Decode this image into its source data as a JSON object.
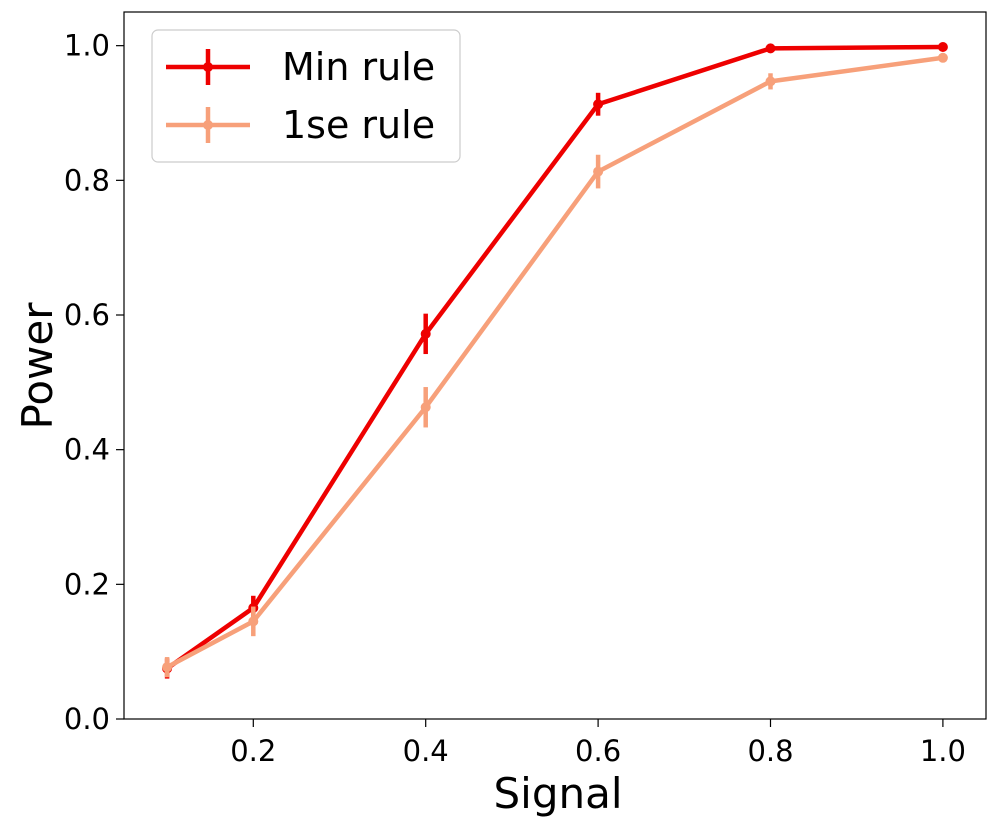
{
  "chart_data": {
    "type": "line",
    "xlabel": "Signal",
    "ylabel": "Power",
    "xlim": [
      0.05,
      1.05
    ],
    "ylim": [
      0.0,
      1.05
    ],
    "xticks": [
      0.2,
      0.4,
      0.6,
      0.8,
      1.0
    ],
    "xtick_labels": [
      "0.2",
      "0.4",
      "0.6",
      "0.8",
      "1.0"
    ],
    "yticks": [
      0.0,
      0.2,
      0.4,
      0.6,
      0.8,
      1.0
    ],
    "ytick_labels": [
      "0.0",
      "0.2",
      "0.4",
      "0.6",
      "0.8",
      "1.0"
    ],
    "grid": false,
    "legend_position": "top-left",
    "x": [
      0.1,
      0.2,
      0.4,
      0.6,
      0.8,
      1.0
    ],
    "series": [
      {
        "name": "Min rule",
        "color": "#ee0000",
        "values": [
          0.075,
          0.165,
          0.572,
          0.913,
          0.996,
          0.998
        ],
        "errors": [
          0.015,
          0.018,
          0.03,
          0.017,
          0.0,
          0.0
        ]
      },
      {
        "name": "1se rule",
        "color": "#f7a07a",
        "values": [
          0.077,
          0.145,
          0.463,
          0.813,
          0.947,
          0.982
        ],
        "errors": [
          0.015,
          0.022,
          0.03,
          0.025,
          0.012,
          0.0
        ]
      }
    ]
  }
}
